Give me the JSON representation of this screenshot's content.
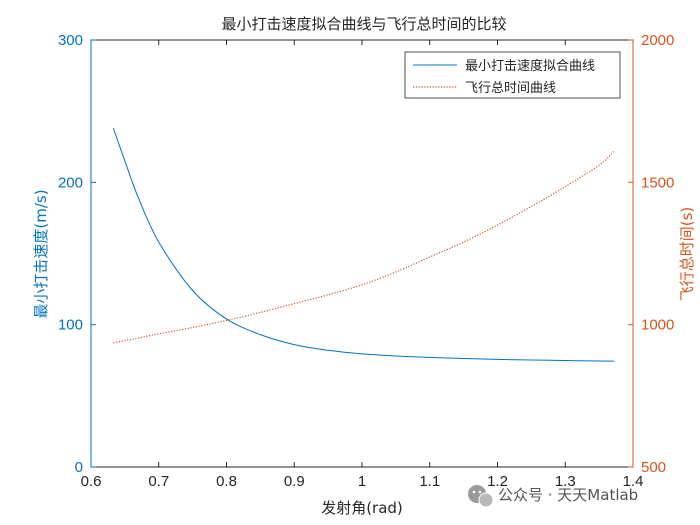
{
  "chart_data": {
    "type": "line",
    "title": "最小打击速度拟合曲线与飞行总时间的比较",
    "xlabel": "发射角(rad)",
    "ylabel_left": "最小打击速度(m/s)",
    "ylabel_right": "飞行总时间(s)",
    "xlim": [
      0.6,
      1.4
    ],
    "ylim_left": [
      0,
      300
    ],
    "ylim_right": [
      500,
      2000
    ],
    "x_ticks": [
      "0.6",
      "0.7",
      "0.8",
      "0.9",
      "1",
      "1.1",
      "1.2",
      "1.3",
      "1.4"
    ],
    "y_ticks_left": [
      "0",
      "100",
      "200",
      "300"
    ],
    "y_ticks_right": [
      "500",
      "1000",
      "1500",
      "2000"
    ],
    "grid": false,
    "legend": "top-right",
    "colors": {
      "series1": "#0072BD",
      "series2": "#D95319",
      "left_axis": "#0072BD",
      "right_axis": "#D95319",
      "axes": "#262626"
    },
    "x": [
      0.633,
      0.65,
      0.67,
      0.7,
      0.75,
      0.8,
      0.85,
      0.9,
      0.95,
      1.0,
      1.05,
      1.1,
      1.15,
      1.2,
      1.25,
      1.3,
      1.35,
      1.372
    ],
    "series": [
      {
        "name": "最小打击速度拟合曲线",
        "axis": "left",
        "style": "solid",
        "values": [
          238,
          215,
          189,
          158,
          124,
          104,
          93,
          86,
          82,
          79.5,
          78,
          77,
          76.2,
          75.6,
          75.2,
          74.8,
          74.5,
          74.4
        ]
      },
      {
        "name": "飞行总时间曲线",
        "axis": "right",
        "style": "dotted",
        "values": [
          936,
          944,
          953,
          968,
          990,
          1015,
          1043,
          1074,
          1105,
          1140,
          1185,
          1238,
          1290,
          1350,
          1415,
          1485,
          1560,
          1610
        ]
      }
    ]
  },
  "watermark": {
    "text": "公众号 · 天天Matlab",
    "icon": "wechat-icon"
  }
}
